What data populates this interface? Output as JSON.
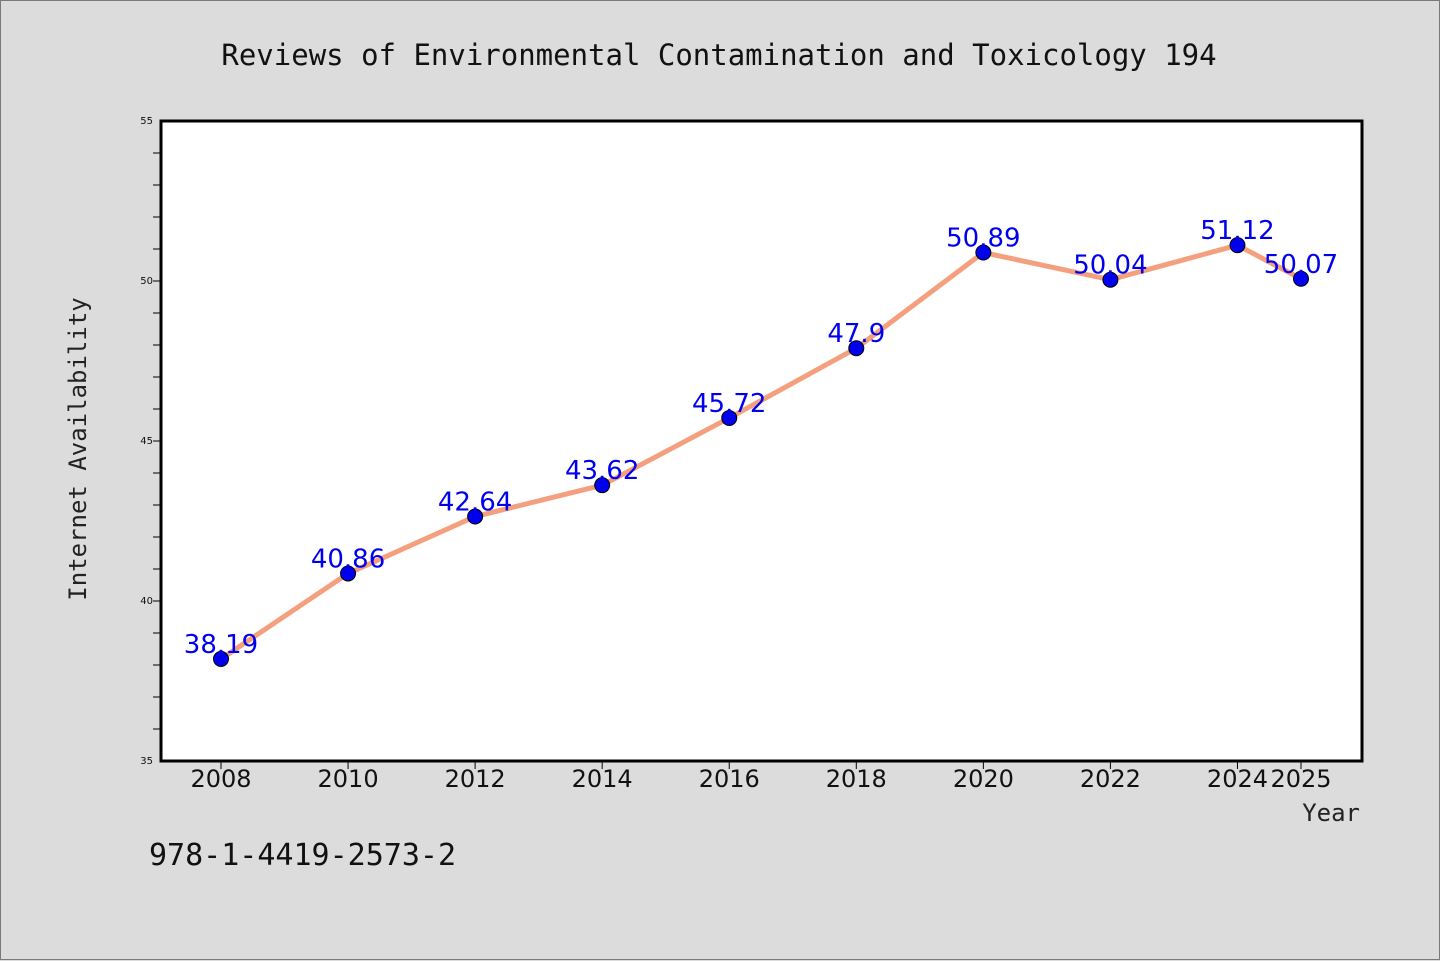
{
  "footer_text": "978-1-4419-2573-2",
  "colors": {
    "background": "#dcdcdc",
    "plot_background": "#ffffff",
    "line": "#f4a07f",
    "marker": "#0000ee",
    "data_label": "#0000ee"
  },
  "chart_data": {
    "type": "line",
    "title": "Reviews of Environmental Contamination and Toxicology 194",
    "xlabel": "Year",
    "ylabel": "Internet Availability",
    "x": [
      2008,
      2010,
      2012,
      2014,
      2016,
      2018,
      2020,
      2022,
      2024,
      2025
    ],
    "x_tick_labels": [
      "2008",
      "2010",
      "2012",
      "2014",
      "2016",
      "2018",
      "2020",
      "2022",
      "2024",
      "2025"
    ],
    "series": [
      {
        "values": [
          38.19,
          40.86,
          42.64,
          43.62,
          45.72,
          47.9,
          50.89,
          50.04,
          51.12,
          50.07
        ],
        "data_labels": [
          "38.19",
          "40.86",
          "42.64",
          "43.62",
          "45.72",
          "47.9",
          "50.89",
          "50.04",
          "51.12",
          "50.07"
        ]
      }
    ],
    "ylim": [
      35,
      55
    ],
    "y_ticks": [
      35,
      40,
      45,
      50,
      55
    ],
    "y_tick_labels": [
      "35",
      "40",
      "45",
      "50",
      "55"
    ],
    "grid": false,
    "legend": "none"
  }
}
